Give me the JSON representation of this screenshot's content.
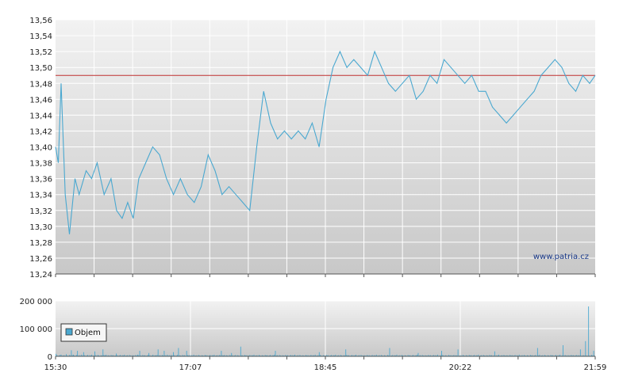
{
  "watermark": "www.patria.cz",
  "colors": {
    "price_line": "#4aa8d0",
    "reference_line": "#c03030",
    "volume_bar": "#4aa8d0",
    "grid": "#ffffff",
    "bg_top": "#f2f2f2",
    "bg_bottom": "#c8c8c8"
  },
  "chart_data": [
    {
      "type": "line",
      "name": "price",
      "ylim": [
        13.24,
        13.56
      ],
      "y_ticks": [
        "13,56",
        "13,54",
        "13,52",
        "13,50",
        "13,48",
        "13,46",
        "13,44",
        "13,42",
        "13,40",
        "13,38",
        "13,36",
        "13,34",
        "13,32",
        "13,30",
        "13,28",
        "13,26",
        "13,24"
      ],
      "y_tick_values": [
        13.56,
        13.54,
        13.52,
        13.5,
        13.48,
        13.46,
        13.44,
        13.42,
        13.4,
        13.38,
        13.36,
        13.34,
        13.32,
        13.3,
        13.28,
        13.26,
        13.24
      ],
      "reference_value": 13.49,
      "x_range": [
        "15:30",
        "21:59"
      ],
      "x": [
        "15:30",
        "15:32",
        "15:34",
        "15:37",
        "15:40",
        "15:44",
        "15:47",
        "15:52",
        "15:56",
        "16:00",
        "16:05",
        "16:10",
        "16:14",
        "16:18",
        "16:22",
        "16:26",
        "16:30",
        "16:35",
        "16:40",
        "16:45",
        "16:50",
        "16:55",
        "17:00",
        "17:05",
        "17:10",
        "17:15",
        "17:20",
        "17:25",
        "17:30",
        "17:35",
        "17:40",
        "17:45",
        "17:50",
        "17:55",
        "18:00",
        "18:05",
        "18:10",
        "18:15",
        "18:20",
        "18:25",
        "18:30",
        "18:35",
        "18:40",
        "18:45",
        "18:50",
        "18:55",
        "19:00",
        "19:05",
        "19:10",
        "19:15",
        "19:20",
        "19:25",
        "19:30",
        "19:35",
        "19:40",
        "19:45",
        "19:50",
        "19:55",
        "20:00",
        "20:05",
        "20:10",
        "20:15",
        "20:20",
        "20:25",
        "20:30",
        "20:35",
        "20:40",
        "20:45",
        "20:50",
        "20:55",
        "21:00",
        "21:05",
        "21:10",
        "21:15",
        "21:20",
        "21:25",
        "21:30",
        "21:35",
        "21:40",
        "21:45",
        "21:50",
        "21:55",
        "21:59"
      ],
      "values": [
        13.4,
        13.38,
        13.48,
        13.34,
        13.29,
        13.36,
        13.34,
        13.37,
        13.36,
        13.38,
        13.34,
        13.36,
        13.32,
        13.31,
        13.33,
        13.31,
        13.36,
        13.38,
        13.4,
        13.39,
        13.36,
        13.34,
        13.36,
        13.34,
        13.33,
        13.35,
        13.39,
        13.37,
        13.34,
        13.35,
        13.34,
        13.33,
        13.32,
        13.4,
        13.47,
        13.43,
        13.41,
        13.42,
        13.41,
        13.42,
        13.41,
        13.43,
        13.4,
        13.46,
        13.5,
        13.52,
        13.5,
        13.51,
        13.5,
        13.49,
        13.52,
        13.5,
        13.48,
        13.47,
        13.48,
        13.49,
        13.46,
        13.47,
        13.49,
        13.48,
        13.51,
        13.5,
        13.49,
        13.48,
        13.49,
        13.47,
        13.47,
        13.45,
        13.44,
        13.43,
        13.44,
        13.45,
        13.46,
        13.47,
        13.49,
        13.5,
        13.51,
        13.5,
        13.48,
        13.47,
        13.49,
        13.48,
        13.49
      ]
    },
    {
      "type": "bar",
      "name": "Objem",
      "ylim": [
        0,
        200000
      ],
      "y_ticks": [
        "200 000",
        "100 000",
        "0"
      ],
      "y_tick_values": [
        200000,
        100000,
        0
      ],
      "x_tick_labels": [
        "15:30",
        "17:07",
        "18:45",
        "20:22",
        "21:59"
      ],
      "legend": [
        "Objem"
      ],
      "values": [
        9000,
        4000,
        2000,
        3000,
        5000,
        6000,
        2000,
        3000,
        4000,
        2000,
        8000,
        3000,
        2000,
        5000,
        3000,
        22000,
        4000,
        6000,
        3000,
        2000,
        5000,
        20000,
        3000,
        4000,
        2000,
        6000,
        3000,
        15000,
        4000,
        2000,
        3000,
        5000,
        2000,
        4000,
        3000,
        6000,
        2000,
        3000,
        18000,
        4000,
        2000,
        5000,
        3000,
        2000,
        4000,
        3000,
        25000,
        5000,
        3000,
        6000,
        2000,
        4000,
        3000,
        2000,
        5000,
        3000,
        4000,
        2000,
        3000,
        10000,
        4000,
        2000,
        3000,
        5000,
        2000,
        4000,
        3000,
        6000,
        2000,
        3000,
        4000,
        2000,
        5000,
        3000,
        2000,
        4000,
        3000,
        2000,
        5000,
        3000,
        6000,
        4000,
        20000,
        3000,
        2000,
        5000,
        3000,
        4000,
        2000,
        3000,
        5000,
        12000,
        4000,
        2000,
        3000,
        6000,
        2000,
        4000,
        3000,
        5000,
        25000,
        3000,
        4000,
        2000,
        5000,
        3000,
        20000,
        4000,
        2000,
        6000,
        3000,
        4000,
        2000,
        5000,
        3000,
        15000,
        4000,
        2000,
        3000,
        5000,
        30000,
        4000,
        3000,
        2000,
        5000,
        3000,
        4000,
        2000,
        20000,
        4000,
        3000,
        5000,
        2000,
        4000,
        3000,
        6000,
        2000,
        3000,
        4000,
        2000,
        5000,
        3000,
        2000,
        4000,
        3000,
        2000,
        5000,
        3000,
        4000,
        2000,
        3000,
        5000,
        2000,
        4000,
        3000,
        6000,
        2000,
        3000,
        4000,
        2000,
        5000,
        3000,
        20000,
        4000,
        3000,
        5000,
        2000,
        4000,
        3000,
        2000,
        5000,
        3000,
        12000,
        4000,
        2000,
        3000,
        5000,
        2000,
        4000,
        3000,
        2000,
        35000,
        3000,
        4000,
        2000,
        5000,
        3000,
        4000,
        2000,
        3000,
        5000,
        2000,
        4000,
        3000,
        6000,
        2000,
        3000,
        4000,
        2000,
        5000,
        3000,
        2000,
        4000,
        3000,
        2000,
        5000,
        3000,
        4000,
        2000,
        3000,
        5000,
        2000,
        4000,
        3000,
        6000,
        20000,
        3000,
        4000,
        2000,
        5000,
        3000,
        2000,
        4000,
        3000,
        2000,
        5000,
        3000,
        4000,
        2000,
        3000,
        5000,
        2000,
        4000,
        3000,
        6000,
        2000,
        3000,
        4000,
        2000,
        5000,
        3000,
        2000,
        4000,
        3000,
        2000,
        5000,
        3000,
        4000,
        2000,
        3000,
        5000,
        2000,
        4000,
        3000,
        6000,
        2000,
        3000,
        4000,
        15000,
        5000,
        3000,
        2000,
        4000,
        3000,
        2000,
        5000,
        3000,
        4000,
        2000,
        3000,
        5000,
        2000,
        4000,
        3000,
        6000,
        2000,
        3000,
        4000,
        2000,
        5000,
        3000,
        2000,
        4000,
        3000,
        25000,
        5000,
        3000,
        4000,
        2000,
        3000,
        5000,
        2000,
        4000,
        3000,
        6000,
        2000,
        3000,
        4000,
        2000,
        5000,
        3000,
        2000,
        4000,
        3000,
        2000,
        5000,
        3000,
        4000,
        2000,
        3000,
        5000,
        2000,
        4000,
        3000,
        6000,
        2000,
        3000,
        4000,
        2000,
        5000,
        3000,
        2000,
        4000,
        3000,
        2000,
        5000,
        3000,
        30000,
        2000,
        3000,
        5000,
        2000,
        4000,
        3000,
        6000,
        2000,
        3000,
        4000,
        2000,
        5000,
        3000,
        2000,
        4000,
        3000,
        2000,
        5000,
        3000,
        4000,
        2000,
        3000,
        5000,
        2000,
        4000,
        3000,
        6000,
        12000,
        3000,
        4000,
        2000,
        5000,
        3000,
        2000,
        4000,
        3000,
        2000,
        5000,
        3000,
        4000,
        2000,
        3000,
        5000,
        2000,
        4000,
        3000,
        6000,
        2000,
        3000,
        4000,
        20000,
        5000,
        3000,
        2000,
        4000,
        3000,
        2000,
        5000,
        3000,
        4000,
        2000,
        3000,
        5000,
        2000,
        4000,
        3000,
        25000,
        2000,
        3000,
        4000,
        2000,
        5000,
        3000,
        2000,
        4000,
        3000,
        2000,
        5000,
        3000,
        4000,
        2000,
        3000,
        5000,
        2000,
        4000,
        3000,
        6000,
        2000,
        3000,
        4000,
        2000,
        5000,
        3000,
        2000,
        4000,
        3000,
        2000,
        5000,
        3000,
        4000,
        2000,
        3000,
        18000,
        2000,
        4000,
        3000,
        6000,
        2000,
        3000,
        4000,
        2000,
        5000,
        3000,
        2000,
        4000,
        3000,
        2000,
        5000,
        3000,
        4000,
        2000,
        3000,
        5000,
        2000,
        4000,
        3000,
        6000,
        2000,
        3000,
        4000,
        2000,
        5000,
        3000,
        2000,
        4000,
        3000,
        2000,
        5000,
        3000,
        4000,
        2000,
        3000,
        5000,
        2000,
        30000,
        3000,
        6000,
        2000,
        3000,
        4000,
        2000,
        5000,
        3000,
        2000,
        4000,
        3000,
        2000,
        5000,
        3000,
        4000,
        2000,
        3000,
        5000,
        2000,
        4000,
        3000,
        6000,
        2000,
        3000,
        40000,
        2000,
        5000,
        3000,
        2000,
        4000,
        3000,
        2000,
        5000,
        3000,
        4000,
        2000,
        3000,
        5000,
        2000,
        4000,
        3000,
        25000,
        2000,
        3000,
        4000,
        2000,
        55000,
        3000,
        2000,
        180000,
        3000,
        2000,
        5000,
        3000,
        20000,
        2000
      ]
    }
  ]
}
